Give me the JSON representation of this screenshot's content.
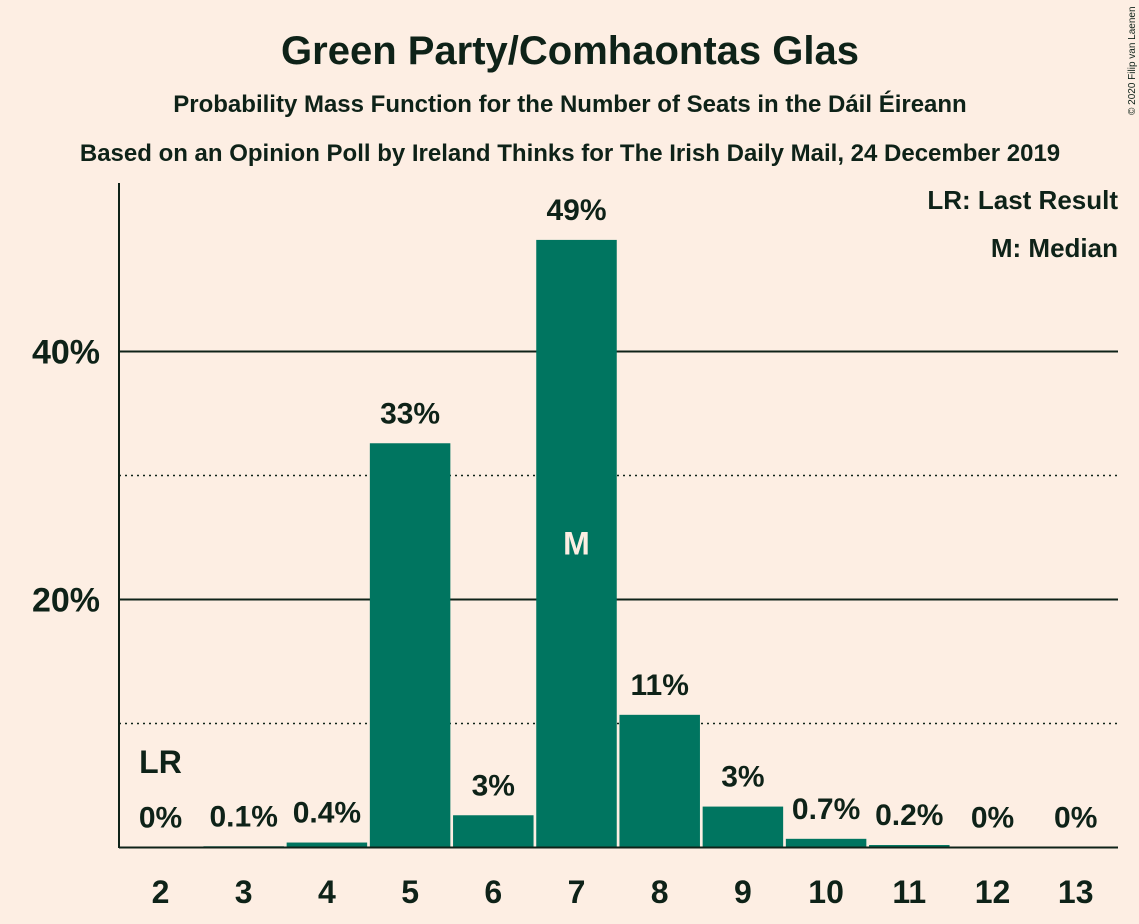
{
  "copyright": "© 2020 Filip van Laenen",
  "chart_data": {
    "type": "bar",
    "title": "Green Party/Comhaontas Glas",
    "subtitle": "Probability Mass Function for the Number of Seats in the Dáil Éireann",
    "subtitle2": "Based on an Opinion Poll by Ireland Thinks for The Irish Daily Mail, 24 December 2019",
    "legend": [
      "LR: Last Result",
      "M: Median"
    ],
    "categories": [
      "2",
      "3",
      "4",
      "5",
      "6",
      "7",
      "8",
      "9",
      "10",
      "11",
      "12",
      "13"
    ],
    "values": [
      0,
      0.1,
      0.4,
      32.6,
      2.6,
      49.0,
      10.7,
      3.3,
      0.7,
      0.2,
      0,
      0
    ],
    "labels": [
      "0%",
      "0.1%",
      "0.4%",
      "33%",
      "3%",
      "49%",
      "11%",
      "3%",
      "0.7%",
      "0.2%",
      "0%",
      "0%"
    ],
    "yticks": [
      {
        "value": 20,
        "label": "20%"
      },
      {
        "value": 40,
        "label": "40%"
      }
    ],
    "minor_gridlines": [
      10,
      30
    ],
    "ylim": [
      0,
      53.5
    ],
    "last_result": "2",
    "last_result_label": "LR",
    "median": "7",
    "median_label": "M",
    "bar_color": "#007560",
    "background_color": "#FDEEE3",
    "text_color": "#0E2218"
  }
}
